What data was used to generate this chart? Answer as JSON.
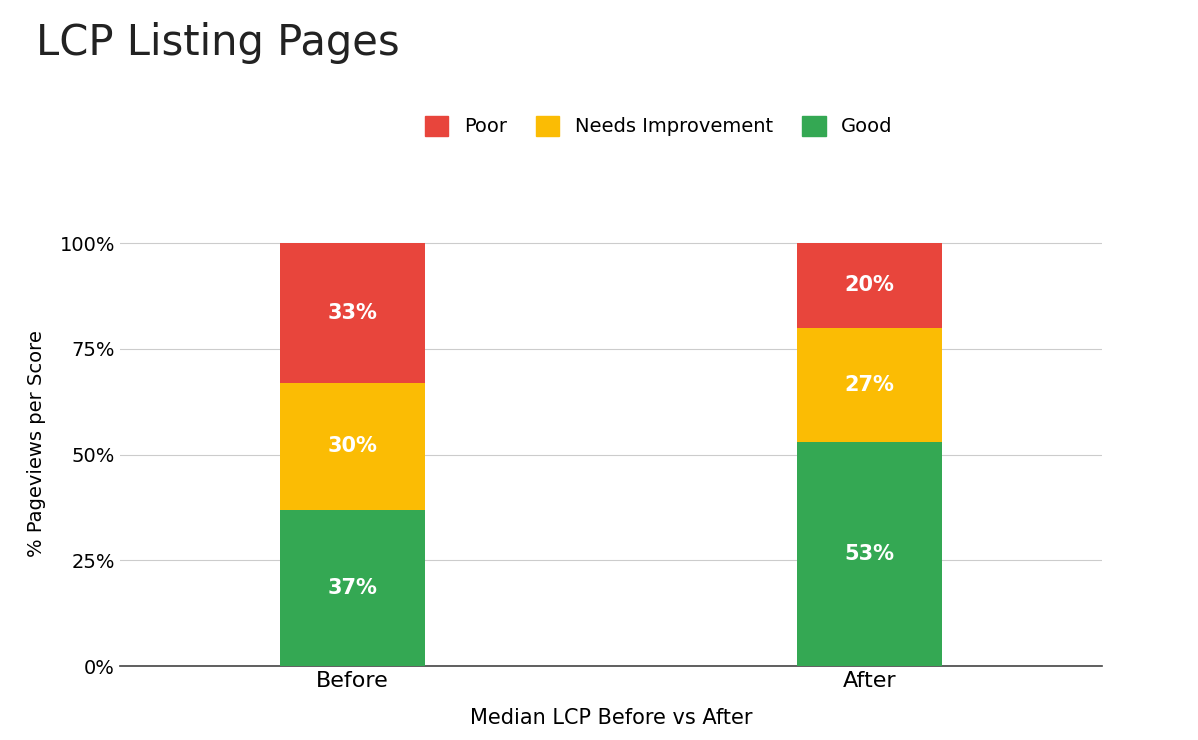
{
  "title": "LCP Listing Pages",
  "xlabel": "Median LCP Before vs After",
  "ylabel": "% Pageviews per Score",
  "categories": [
    "Before",
    "After"
  ],
  "good": [
    37,
    53
  ],
  "needs_improvement": [
    30,
    27
  ],
  "poor": [
    33,
    20
  ],
  "color_good": "#34a853",
  "color_needs_improvement": "#fbbc04",
  "color_poor": "#e8453c",
  "legend_labels": [
    "Poor",
    "Needs Improvement",
    "Good"
  ],
  "yticks": [
    0,
    25,
    50,
    75,
    100
  ],
  "ytick_labels": [
    "0%",
    "25%",
    "50%",
    "75%",
    "100%"
  ],
  "bar_width": 0.28,
  "label_color": "#ffffff",
  "label_fontsize": 15,
  "title_fontsize": 30,
  "axis_fontsize": 13,
  "legend_fontsize": 14,
  "background_color": "#ffffff"
}
